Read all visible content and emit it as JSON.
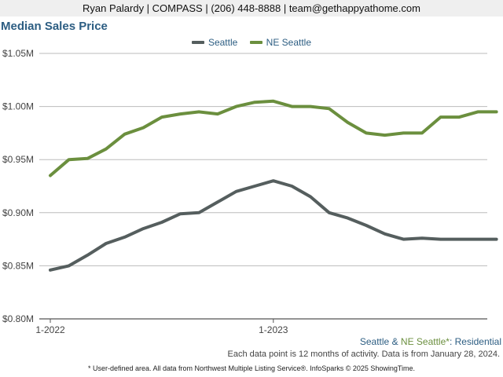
{
  "header": {
    "contact_line": "Ryan Palardy | COMPASS | (206) 448-8888 | team@gethappyathome.com"
  },
  "chart_data": {
    "type": "line",
    "title": "Median Sales Price",
    "xlabel": "",
    "ylabel": "",
    "x": [
      "2022-01",
      "2022-02",
      "2022-03",
      "2022-04",
      "2022-05",
      "2022-06",
      "2022-07",
      "2022-08",
      "2022-09",
      "2022-10",
      "2022-11",
      "2022-12",
      "2023-01",
      "2023-02",
      "2023-03",
      "2023-04",
      "2023-05",
      "2023-06",
      "2023-07",
      "2023-08",
      "2023-09",
      "2023-10",
      "2023-11",
      "2023-12",
      "2024-01"
    ],
    "x_tick_labels": [
      "1-2022",
      "1-2023"
    ],
    "y_tick_labels": [
      "$0.80M",
      "$0.85M",
      "$0.90M",
      "$0.95M",
      "$1.00M",
      "$1.05M"
    ],
    "ylim": [
      0.8,
      1.05
    ],
    "grid": true,
    "legend_position": "top-center",
    "series": [
      {
        "name": "Seattle",
        "color": "#555e5e",
        "values": [
          0.846,
          0.85,
          0.86,
          0.871,
          0.877,
          0.885,
          0.891,
          0.899,
          0.9,
          0.91,
          0.92,
          0.925,
          0.93,
          0.925,
          0.915,
          0.9,
          0.895,
          0.888,
          0.88,
          0.875,
          0.876,
          0.875,
          0.875,
          0.875,
          0.875
        ]
      },
      {
        "name": "NE Seattle",
        "color": "#6b8f3e",
        "values": [
          0.935,
          0.95,
          0.951,
          0.96,
          0.974,
          0.98,
          0.99,
          0.993,
          0.995,
          0.993,
          1.0,
          1.004,
          1.005,
          1.0,
          1.0,
          0.998,
          0.985,
          0.975,
          0.973,
          0.975,
          0.975,
          0.99,
          0.99,
          0.995,
          0.995
        ]
      }
    ]
  },
  "footer": {
    "subtitle_part1": "Seattle",
    "subtitle_amp": " & ",
    "subtitle_part2": "NE Seattle*",
    "subtitle_colon": ": ",
    "subtitle_part3": "Residential",
    "colors": {
      "seattle": "#2c5d82",
      "ne_seattle": "#6b8f3e",
      "residential": "#2c5d82"
    },
    "note_data": "Each data point is 12 months of activity. Data is from January 28, 2024.",
    "note_source": "* User-defined area. All data from Northwest Multiple Listing Service®. InfoSparks © 2025 ShowingTime."
  }
}
